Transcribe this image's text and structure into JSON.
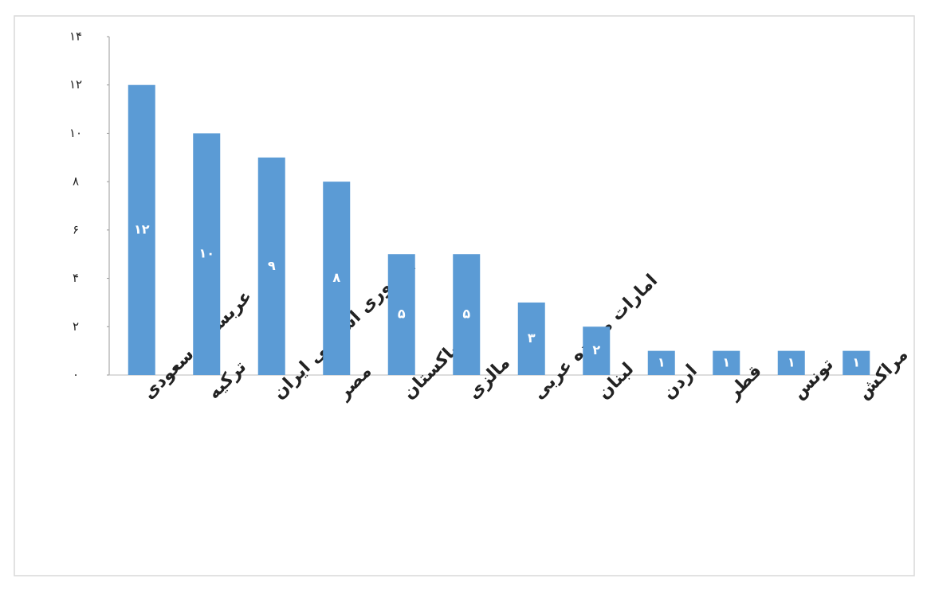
{
  "chart_data": {
    "type": "bar",
    "categories": [
      "عربستان سعودی",
      "ترکیه",
      "جمهوری اسلامی ایران",
      "مصر",
      "پاکستان",
      "مالزی",
      "امارات متحده عربی",
      "لبنان",
      "اردن",
      "قطر",
      "تونس",
      "مراکش"
    ],
    "values": [
      12,
      10,
      9,
      8,
      5,
      5,
      3,
      2,
      1,
      1,
      1,
      1
    ],
    "value_labels": [
      "۱۲",
      "۱۰",
      "۹",
      "۸",
      "۵",
      "۵",
      "۳",
      "۲",
      "۱",
      "۱",
      "۱",
      "۱"
    ],
    "color": "#5b9bd5",
    "ylim": [
      0,
      14
    ],
    "yticks": [
      {
        "value": 0,
        "label": "۰"
      },
      {
        "value": 2,
        "label": "۲"
      },
      {
        "value": 4,
        "label": "۴"
      },
      {
        "value": 6,
        "label": "۶"
      },
      {
        "value": 8,
        "label": "۸"
      },
      {
        "value": 10,
        "label": "۱۰"
      },
      {
        "value": 12,
        "label": "۱۲"
      },
      {
        "value": 14,
        "label": "۱۴"
      }
    ],
    "grid": false
  }
}
